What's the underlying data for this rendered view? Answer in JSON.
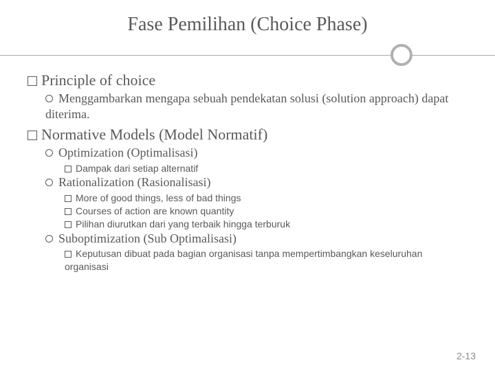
{
  "title": "Fase Pemilihan (Choice Phase)",
  "sections": [
    {
      "heading": "Principle of choice",
      "items": [
        {
          "text": "Menggambarkan mengapa sebuah pendekatan solusi (solution approach) dapat diterima.",
          "subs": []
        }
      ]
    },
    {
      "heading": "Normative Models (Model Normatif)",
      "items": [
        {
          "text": "Optimization (Optimalisasi)",
          "subs": [
            "Dampak dari setiap alternatif"
          ]
        },
        {
          "text": "Rationalization (Rasionalisasi)",
          "subs": [
            "More of good things, less of bad things",
            "Courses of action are known quantity",
            "Pilihan diurutkan dari yang terbaik hingga terburuk"
          ]
        },
        {
          "text": "Suboptimization (Sub Optimalisasi)",
          "subs": [
            "Keputusan dibuat pada bagian organisasi tanpa mempertimbangkan keseluruhan organisasi"
          ]
        }
      ]
    }
  ],
  "page_number": "2-13",
  "colors": {
    "text": "#595959",
    "divider": "#a6a6a6",
    "circle_border": "#b0b0b0",
    "background": "#ffffff"
  }
}
